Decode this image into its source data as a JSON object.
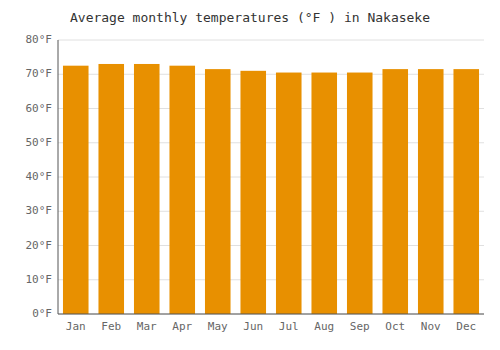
{
  "chart_data": {
    "type": "bar",
    "title": "Average monthly temperatures (°F ) in Nakaseke",
    "categories": [
      "Jan",
      "Feb",
      "Mar",
      "Apr",
      "May",
      "Jun",
      "Jul",
      "Aug",
      "Sep",
      "Oct",
      "Nov",
      "Dec"
    ],
    "values": [
      72.5,
      73.0,
      73.0,
      72.5,
      71.5,
      71.0,
      70.5,
      70.5,
      70.5,
      71.5,
      71.5,
      71.5
    ],
    "color": "#E89000",
    "ylim": [
      0,
      80
    ],
    "yticks": [
      {
        "value": 0,
        "label": "0°F"
      },
      {
        "value": 10,
        "label": "10°F"
      },
      {
        "value": 20,
        "label": "20°F"
      },
      {
        "value": 30,
        "label": "30°F"
      },
      {
        "value": 40,
        "label": "40°F"
      },
      {
        "value": 50,
        "label": "50°F"
      },
      {
        "value": 60,
        "label": "60°F"
      },
      {
        "value": 70,
        "label": "70°F"
      },
      {
        "value": 80,
        "label": "80°F"
      }
    ],
    "grid": true
  }
}
